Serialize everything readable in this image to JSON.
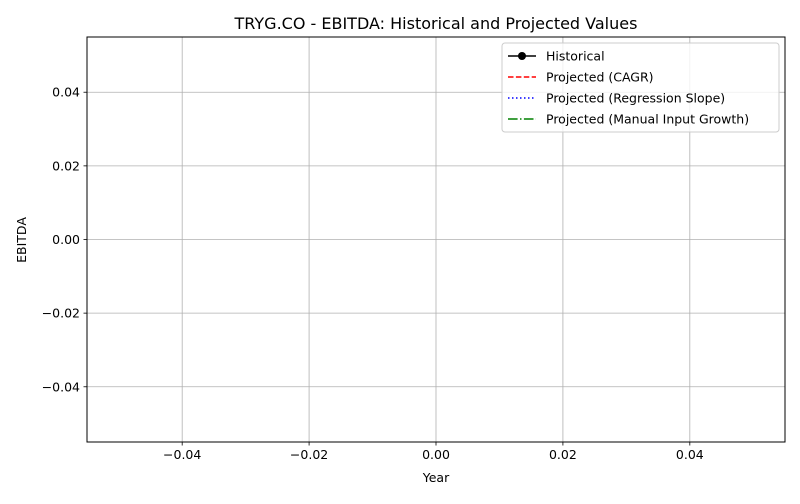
{
  "chart_data": {
    "type": "line",
    "title": "TRYG.CO - EBITDA: Historical and Projected Values",
    "xlabel": "Year",
    "ylabel": "EBITDA",
    "xlim": [
      -0.055,
      0.055
    ],
    "ylim": [
      -0.055,
      0.055
    ],
    "xticks": [
      -0.04,
      -0.02,
      0.0,
      0.02,
      0.04
    ],
    "xtick_labels": [
      "−0.04",
      "−0.02",
      "0.00",
      "0.02",
      "0.04"
    ],
    "yticks": [
      -0.04,
      -0.02,
      0.0,
      0.02,
      0.04
    ],
    "ytick_labels": [
      "−0.04",
      "−0.02",
      "0.00",
      "0.02",
      "0.04"
    ],
    "grid": true,
    "legend_position": "upper right",
    "series": [
      {
        "name": "Historical",
        "style": "solid",
        "marker": "circle",
        "color": "#000000",
        "x": [],
        "y": []
      },
      {
        "name": "Projected (CAGR)",
        "style": "dashed",
        "marker": "none",
        "color": "#ff0000",
        "x": [],
        "y": []
      },
      {
        "name": "Projected (Regression Slope)",
        "style": "dotted",
        "marker": "none",
        "color": "#0000ff",
        "x": [],
        "y": []
      },
      {
        "name": "Projected (Manual Input Growth)",
        "style": "dashdot",
        "marker": "none",
        "color": "#008000",
        "x": [],
        "y": []
      }
    ]
  }
}
